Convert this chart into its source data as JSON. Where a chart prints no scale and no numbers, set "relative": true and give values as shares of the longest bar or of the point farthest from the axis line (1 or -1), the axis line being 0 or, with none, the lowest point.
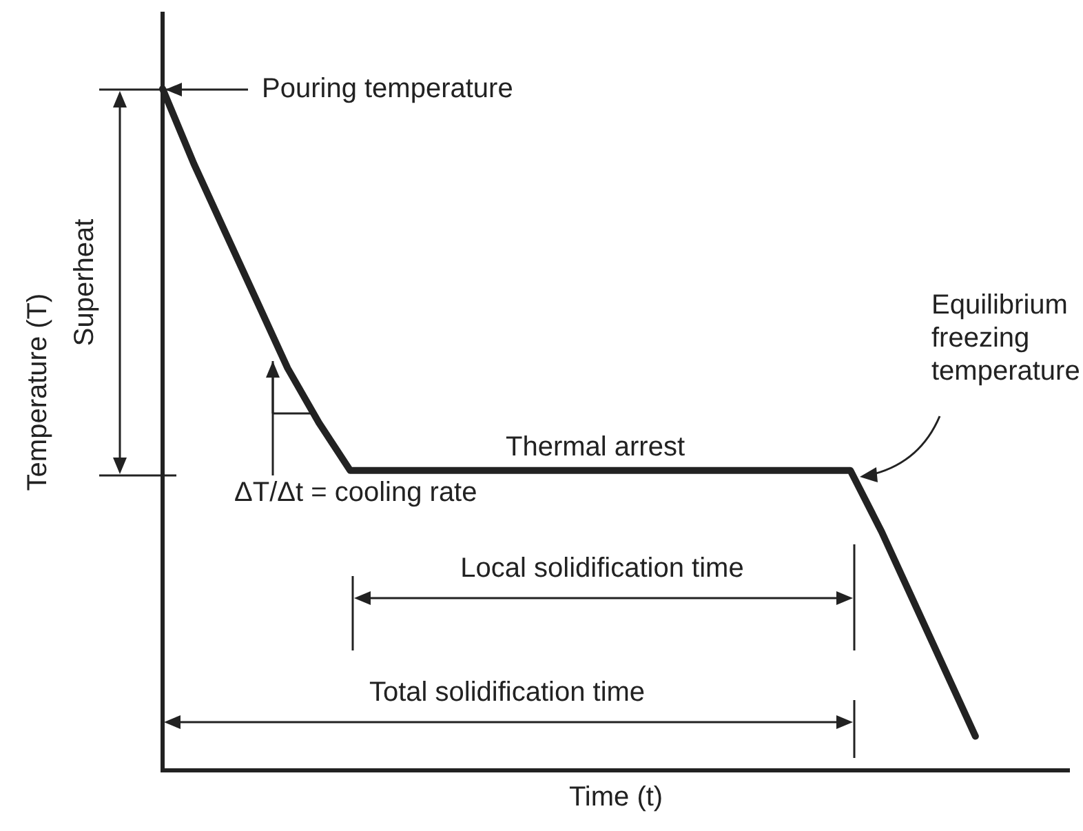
{
  "chart_data": {
    "type": "line",
    "relative": true,
    "categories": [
      null,
      null,
      null,
      null,
      null,
      null,
      null,
      null,
      null,
      null,
      null,
      null,
      null,
      null,
      null,
      null,
      null,
      null,
      null,
      null,
      null,
      null,
      null,
      null,
      null,
      null,
      null,
      null,
      null,
      null
    ],
    "values": [
      1,
      0.89,
      0.79,
      0.69,
      0.59,
      0.51,
      0.44,
      0.44,
      0.44,
      0.44,
      0.44,
      0.44,
      0.44,
      0.44,
      0.44,
      0.44,
      0.44,
      0.44,
      0.44,
      0.44,
      0.44,
      0.44,
      0.44,
      0.35,
      0.25,
      0.15,
      0.05,
      null,
      null,
      null
    ],
    "color": "#222222",
    "marker": "none",
    "line_style": "solid",
    "xlabel": "Time (t)",
    "ylabel": "Temperature (T)",
    "annotations": [
      "Pouring temperature",
      "Superheat",
      "Thermal arrest",
      "Equilibrium freezing temperature",
      "ΔT/Δt = cooling rate",
      "Local solidification time",
      "Total solidification time"
    ]
  }
}
